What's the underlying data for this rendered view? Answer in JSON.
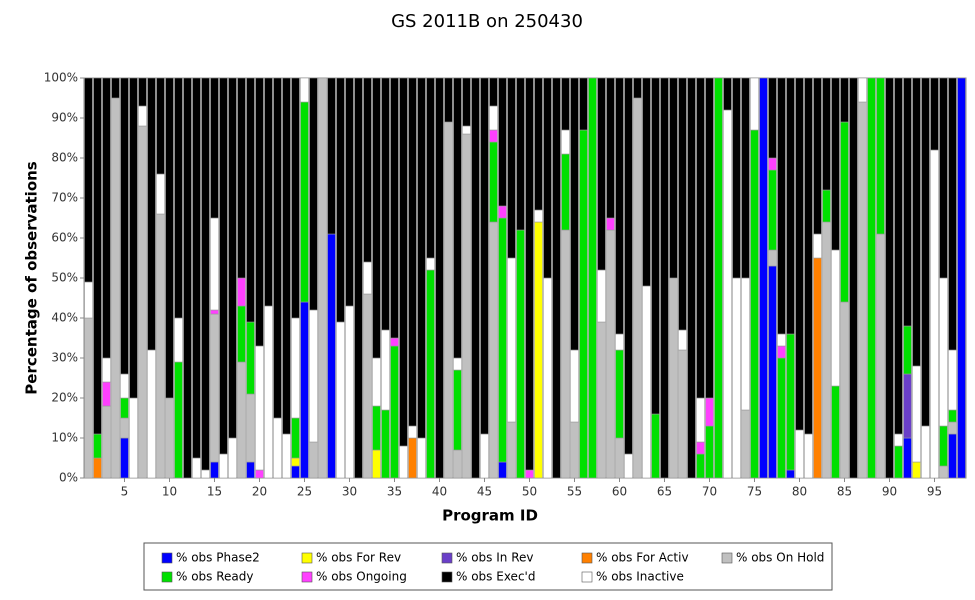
{
  "chart_data": {
    "type": "stacked-bar",
    "title": "GS 2011B on 250430",
    "x_label": "Program ID",
    "y_label": "Percentage of observations",
    "categories": [
      null,
      null,
      null,
      null,
      "5",
      null,
      null,
      null,
      null,
      "10",
      null,
      null,
      null,
      null,
      "15",
      null,
      null,
      null,
      null,
      "20",
      null,
      null,
      null,
      null,
      "25",
      null,
      null,
      null,
      null,
      "30",
      null,
      null,
      null,
      null,
      "35",
      null,
      null,
      null,
      null,
      "40",
      null,
      null,
      null,
      null,
      "45",
      null,
      null,
      null,
      null,
      "50",
      null,
      null,
      null,
      null,
      "55",
      null,
      null,
      null,
      null,
      "60",
      null,
      null,
      null,
      null,
      "65",
      null,
      null,
      null,
      null,
      "70",
      null,
      null,
      null,
      null,
      "75",
      null,
      null,
      null,
      null,
      "80",
      null,
      null,
      null,
      null,
      "85",
      null,
      null,
      null,
      null,
      "90",
      null,
      null,
      null,
      null,
      "95",
      null,
      null,
      null
    ],
    "ylim": [
      0,
      100
    ],
    "yticks": [
      {
        "value": 0,
        "label": "0%"
      },
      {
        "value": 10,
        "label": "10%"
      },
      {
        "value": 20,
        "label": "20%"
      },
      {
        "value": 30,
        "label": "30%"
      },
      {
        "value": 40,
        "label": "40%"
      },
      {
        "value": 50,
        "label": "50%"
      },
      {
        "value": 60,
        "label": "60%"
      },
      {
        "value": 70,
        "label": "70%"
      },
      {
        "value": 80,
        "label": "80%"
      },
      {
        "value": 90,
        "label": "90%"
      },
      {
        "value": 100,
        "label": "100%"
      }
    ],
    "series": [
      {
        "name": "% obs Phase2",
        "color": "#0000ff",
        "values": [
          0,
          0,
          0,
          0,
          10,
          0,
          0,
          0,
          0,
          0,
          0,
          0,
          0,
          0,
          4,
          0,
          0,
          0,
          4,
          0,
          0,
          0,
          0,
          3,
          44,
          0,
          0,
          61,
          0,
          0,
          0,
          0,
          0,
          0,
          0,
          0,
          0,
          0,
          0,
          0,
          0,
          0,
          0,
          0,
          0,
          0,
          4,
          0,
          0,
          0,
          0,
          0,
          0,
          0,
          0,
          0,
          0,
          0,
          0,
          0,
          0,
          0,
          0,
          0,
          0,
          0,
          0,
          0,
          0,
          0,
          0,
          0,
          0,
          0,
          0,
          100,
          53,
          0,
          2,
          0,
          0,
          0,
          0,
          0,
          0,
          0,
          0,
          0,
          0,
          0,
          0,
          10,
          0,
          0,
          0,
          0,
          11,
          100
        ]
      },
      {
        "name": "% obs For Rev",
        "color": "#ffff00",
        "values": [
          0,
          0,
          0,
          0,
          0,
          0,
          0,
          0,
          0,
          0,
          0,
          0,
          0,
          0,
          0,
          0,
          0,
          0,
          0,
          0,
          0,
          0,
          0,
          2,
          0,
          0,
          0,
          0,
          0,
          0,
          0,
          0,
          7,
          0,
          0,
          0,
          0,
          0,
          0,
          0,
          0,
          0,
          0,
          0,
          0,
          0,
          0,
          0,
          0,
          0,
          64,
          0,
          0,
          0,
          0,
          0,
          0,
          0,
          0,
          0,
          0,
          0,
          0,
          0,
          0,
          0,
          0,
          0,
          0,
          0,
          0,
          0,
          0,
          0,
          0,
          0,
          0,
          0,
          0,
          0,
          0,
          0,
          0,
          0,
          0,
          0,
          0,
          0,
          0,
          0,
          0,
          0,
          4,
          0,
          0,
          0,
          0,
          0
        ]
      },
      {
        "name": "% obs In Rev",
        "color": "#6a3fc8",
        "values": [
          0,
          0,
          0,
          0,
          0,
          0,
          0,
          0,
          0,
          0,
          0,
          0,
          0,
          0,
          0,
          0,
          0,
          0,
          0,
          0,
          0,
          0,
          0,
          0,
          0,
          0,
          0,
          0,
          0,
          0,
          0,
          0,
          0,
          0,
          0,
          0,
          0,
          0,
          0,
          0,
          0,
          0,
          0,
          0,
          0,
          0,
          0,
          0,
          0,
          0,
          0,
          0,
          0,
          0,
          0,
          0,
          0,
          0,
          0,
          0,
          0,
          0,
          0,
          0,
          0,
          0,
          0,
          0,
          0,
          0,
          0,
          0,
          0,
          0,
          0,
          0,
          0,
          0,
          0,
          0,
          0,
          0,
          0,
          0,
          0,
          0,
          0,
          0,
          0,
          0,
          0,
          16,
          0,
          0,
          0,
          0,
          0,
          0
        ]
      },
      {
        "name": "% obs For Activ",
        "color": "#ff8000",
        "values": [
          0,
          5,
          0,
          0,
          0,
          0,
          0,
          0,
          0,
          0,
          0,
          0,
          0,
          0,
          0,
          0,
          0,
          0,
          0,
          0,
          0,
          0,
          0,
          0,
          0,
          0,
          0,
          0,
          0,
          0,
          0,
          0,
          0,
          0,
          0,
          0,
          10,
          0,
          0,
          0,
          0,
          0,
          0,
          0,
          0,
          0,
          0,
          0,
          0,
          0,
          0,
          0,
          0,
          0,
          0,
          0,
          0,
          0,
          0,
          0,
          0,
          0,
          0,
          0,
          0,
          0,
          0,
          0,
          0,
          0,
          0,
          0,
          0,
          0,
          0,
          0,
          0,
          0,
          0,
          0,
          0,
          55,
          0,
          0,
          0,
          0,
          0,
          0,
          0,
          0,
          0,
          0,
          0,
          0,
          0,
          0,
          0,
          0
        ]
      },
      {
        "name": "% obs On Hold",
        "color": "#c0c0c0",
        "values": [
          40,
          0,
          18,
          95,
          5,
          0,
          88,
          0,
          66,
          20,
          0,
          0,
          0,
          0,
          37,
          0,
          0,
          29,
          17,
          0,
          0,
          0,
          0,
          0,
          0,
          9,
          100,
          0,
          0,
          0,
          0,
          46,
          0,
          0,
          0,
          0,
          0,
          0,
          0,
          0,
          89,
          7,
          86,
          0,
          0,
          64,
          0,
          14,
          0,
          0,
          0,
          0,
          0,
          62,
          14,
          0,
          0,
          39,
          62,
          10,
          0,
          95,
          0,
          0,
          0,
          50,
          32,
          0,
          0,
          0,
          0,
          0,
          0,
          17,
          0,
          0,
          4,
          0,
          0,
          0,
          0,
          0,
          64,
          0,
          44,
          0,
          94,
          0,
          61,
          0,
          0,
          0,
          0,
          0,
          0,
          3,
          3,
          0
        ]
      },
      {
        "name": "% obs Ready",
        "color": "#00e000",
        "values": [
          0,
          6,
          0,
          0,
          5,
          0,
          0,
          0,
          0,
          0,
          29,
          0,
          0,
          0,
          0,
          0,
          0,
          14,
          18,
          0,
          0,
          0,
          0,
          10,
          50,
          0,
          0,
          0,
          0,
          0,
          0,
          0,
          11,
          17,
          33,
          0,
          0,
          0,
          52,
          0,
          0,
          20,
          0,
          0,
          0,
          20,
          61,
          0,
          62,
          0,
          0,
          0,
          0,
          19,
          0,
          87,
          100,
          0,
          0,
          22,
          0,
          0,
          0,
          16,
          0,
          0,
          0,
          0,
          6,
          13,
          100,
          0,
          0,
          0,
          87,
          0,
          20,
          30,
          34,
          0,
          0,
          0,
          8,
          23,
          45,
          0,
          0,
          100,
          39,
          0,
          8,
          12,
          0,
          0,
          0,
          10,
          3,
          0
        ]
      },
      {
        "name": "% obs Ongoing",
        "color": "#ff40ff",
        "values": [
          0,
          0,
          6,
          0,
          0,
          0,
          0,
          0,
          0,
          0,
          0,
          0,
          0,
          0,
          1,
          0,
          0,
          7,
          0,
          2,
          0,
          0,
          0,
          0,
          0,
          0,
          0,
          0,
          0,
          0,
          0,
          0,
          0,
          0,
          2,
          0,
          0,
          0,
          0,
          0,
          0,
          0,
          0,
          0,
          0,
          3,
          3,
          0,
          0,
          2,
          0,
          0,
          0,
          0,
          0,
          0,
          0,
          0,
          3,
          0,
          0,
          0,
          0,
          0,
          0,
          0,
          0,
          0,
          3,
          7,
          0,
          0,
          0,
          0,
          0,
          0,
          3,
          3,
          0,
          0,
          0,
          0,
          0,
          0,
          0,
          0,
          0,
          0,
          0,
          0,
          0,
          0,
          0,
          0,
          0,
          0,
          0,
          0
        ]
      },
      {
        "name": "% obs Exec'd",
        "color": "#000000",
        "values": [
          51,
          89,
          70,
          5,
          74,
          80,
          7,
          68,
          24,
          80,
          60,
          100,
          95,
          98,
          35,
          94,
          90,
          50,
          61,
          67,
          57,
          85,
          89,
          60,
          0,
          58,
          0,
          39,
          61,
          57,
          100,
          46,
          70,
          63,
          65,
          92,
          87,
          90,
          45,
          100,
          11,
          70,
          12,
          100,
          89,
          7,
          32,
          45,
          38,
          98,
          33,
          50,
          100,
          13,
          68,
          13,
          0,
          48,
          35,
          64,
          94,
          5,
          52,
          84,
          100,
          50,
          63,
          100,
          80,
          80,
          0,
          8,
          50,
          50,
          0,
          0,
          20,
          64,
          64,
          88,
          89,
          39,
          28,
          43,
          11,
          100,
          0,
          0,
          0,
          100,
          89,
          62,
          72,
          87,
          18,
          50,
          68,
          0
        ]
      },
      {
        "name": "% obs Inactive",
        "color": "#ffffff",
        "values": [
          9,
          0,
          6,
          0,
          6,
          20,
          5,
          32,
          10,
          0,
          11,
          0,
          5,
          2,
          23,
          6,
          10,
          0,
          0,
          31,
          43,
          15,
          11,
          25,
          6,
          33,
          0,
          0,
          39,
          43,
          0,
          8,
          12,
          20,
          0,
          8,
          3,
          10,
          3,
          0,
          0,
          3,
          2,
          0,
          11,
          6,
          0,
          41,
          0,
          0,
          3,
          50,
          0,
          6,
          18,
          0,
          0,
          13,
          0,
          4,
          6,
          0,
          48,
          0,
          0,
          0,
          5,
          0,
          11,
          0,
          0,
          92,
          50,
          33,
          13,
          0,
          0,
          3,
          0,
          12,
          11,
          6,
          0,
          34,
          0,
          0,
          6,
          0,
          0,
          0,
          3,
          0,
          24,
          13,
          82,
          37,
          15,
          0
        ]
      }
    ]
  }
}
